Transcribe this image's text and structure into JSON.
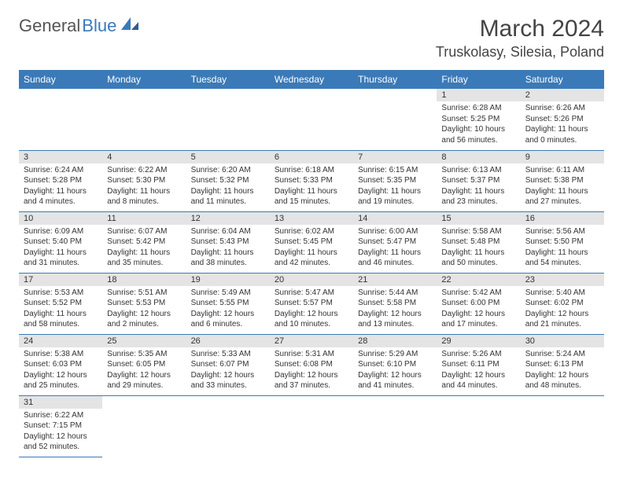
{
  "brand": {
    "word1": "General",
    "word2": "Blue"
  },
  "title": {
    "month": "March 2024",
    "location": "Truskolasy, Silesia, Poland"
  },
  "colors": {
    "header_bg": "#3b7ab8",
    "daynum_bg": "#e4e4e4",
    "border": "#3b7ab8"
  },
  "weekdays": [
    "Sunday",
    "Monday",
    "Tuesday",
    "Wednesday",
    "Thursday",
    "Friday",
    "Saturday"
  ],
  "weeks": [
    [
      null,
      null,
      null,
      null,
      null,
      {
        "n": "1",
        "sr": "Sunrise: 6:28 AM",
        "ss": "Sunset: 5:25 PM",
        "dl": "Daylight: 10 hours and 56 minutes."
      },
      {
        "n": "2",
        "sr": "Sunrise: 6:26 AM",
        "ss": "Sunset: 5:26 PM",
        "dl": "Daylight: 11 hours and 0 minutes."
      }
    ],
    [
      {
        "n": "3",
        "sr": "Sunrise: 6:24 AM",
        "ss": "Sunset: 5:28 PM",
        "dl": "Daylight: 11 hours and 4 minutes."
      },
      {
        "n": "4",
        "sr": "Sunrise: 6:22 AM",
        "ss": "Sunset: 5:30 PM",
        "dl": "Daylight: 11 hours and 8 minutes."
      },
      {
        "n": "5",
        "sr": "Sunrise: 6:20 AM",
        "ss": "Sunset: 5:32 PM",
        "dl": "Daylight: 11 hours and 11 minutes."
      },
      {
        "n": "6",
        "sr": "Sunrise: 6:18 AM",
        "ss": "Sunset: 5:33 PM",
        "dl": "Daylight: 11 hours and 15 minutes."
      },
      {
        "n": "7",
        "sr": "Sunrise: 6:15 AM",
        "ss": "Sunset: 5:35 PM",
        "dl": "Daylight: 11 hours and 19 minutes."
      },
      {
        "n": "8",
        "sr": "Sunrise: 6:13 AM",
        "ss": "Sunset: 5:37 PM",
        "dl": "Daylight: 11 hours and 23 minutes."
      },
      {
        "n": "9",
        "sr": "Sunrise: 6:11 AM",
        "ss": "Sunset: 5:38 PM",
        "dl": "Daylight: 11 hours and 27 minutes."
      }
    ],
    [
      {
        "n": "10",
        "sr": "Sunrise: 6:09 AM",
        "ss": "Sunset: 5:40 PM",
        "dl": "Daylight: 11 hours and 31 minutes."
      },
      {
        "n": "11",
        "sr": "Sunrise: 6:07 AM",
        "ss": "Sunset: 5:42 PM",
        "dl": "Daylight: 11 hours and 35 minutes."
      },
      {
        "n": "12",
        "sr": "Sunrise: 6:04 AM",
        "ss": "Sunset: 5:43 PM",
        "dl": "Daylight: 11 hours and 38 minutes."
      },
      {
        "n": "13",
        "sr": "Sunrise: 6:02 AM",
        "ss": "Sunset: 5:45 PM",
        "dl": "Daylight: 11 hours and 42 minutes."
      },
      {
        "n": "14",
        "sr": "Sunrise: 6:00 AM",
        "ss": "Sunset: 5:47 PM",
        "dl": "Daylight: 11 hours and 46 minutes."
      },
      {
        "n": "15",
        "sr": "Sunrise: 5:58 AM",
        "ss": "Sunset: 5:48 PM",
        "dl": "Daylight: 11 hours and 50 minutes."
      },
      {
        "n": "16",
        "sr": "Sunrise: 5:56 AM",
        "ss": "Sunset: 5:50 PM",
        "dl": "Daylight: 11 hours and 54 minutes."
      }
    ],
    [
      {
        "n": "17",
        "sr": "Sunrise: 5:53 AM",
        "ss": "Sunset: 5:52 PM",
        "dl": "Daylight: 11 hours and 58 minutes."
      },
      {
        "n": "18",
        "sr": "Sunrise: 5:51 AM",
        "ss": "Sunset: 5:53 PM",
        "dl": "Daylight: 12 hours and 2 minutes."
      },
      {
        "n": "19",
        "sr": "Sunrise: 5:49 AM",
        "ss": "Sunset: 5:55 PM",
        "dl": "Daylight: 12 hours and 6 minutes."
      },
      {
        "n": "20",
        "sr": "Sunrise: 5:47 AM",
        "ss": "Sunset: 5:57 PM",
        "dl": "Daylight: 12 hours and 10 minutes."
      },
      {
        "n": "21",
        "sr": "Sunrise: 5:44 AM",
        "ss": "Sunset: 5:58 PM",
        "dl": "Daylight: 12 hours and 13 minutes."
      },
      {
        "n": "22",
        "sr": "Sunrise: 5:42 AM",
        "ss": "Sunset: 6:00 PM",
        "dl": "Daylight: 12 hours and 17 minutes."
      },
      {
        "n": "23",
        "sr": "Sunrise: 5:40 AM",
        "ss": "Sunset: 6:02 PM",
        "dl": "Daylight: 12 hours and 21 minutes."
      }
    ],
    [
      {
        "n": "24",
        "sr": "Sunrise: 5:38 AM",
        "ss": "Sunset: 6:03 PM",
        "dl": "Daylight: 12 hours and 25 minutes."
      },
      {
        "n": "25",
        "sr": "Sunrise: 5:35 AM",
        "ss": "Sunset: 6:05 PM",
        "dl": "Daylight: 12 hours and 29 minutes."
      },
      {
        "n": "26",
        "sr": "Sunrise: 5:33 AM",
        "ss": "Sunset: 6:07 PM",
        "dl": "Daylight: 12 hours and 33 minutes."
      },
      {
        "n": "27",
        "sr": "Sunrise: 5:31 AM",
        "ss": "Sunset: 6:08 PM",
        "dl": "Daylight: 12 hours and 37 minutes."
      },
      {
        "n": "28",
        "sr": "Sunrise: 5:29 AM",
        "ss": "Sunset: 6:10 PM",
        "dl": "Daylight: 12 hours and 41 minutes."
      },
      {
        "n": "29",
        "sr": "Sunrise: 5:26 AM",
        "ss": "Sunset: 6:11 PM",
        "dl": "Daylight: 12 hours and 44 minutes."
      },
      {
        "n": "30",
        "sr": "Sunrise: 5:24 AM",
        "ss": "Sunset: 6:13 PM",
        "dl": "Daylight: 12 hours and 48 minutes."
      }
    ],
    [
      {
        "n": "31",
        "sr": "Sunrise: 6:22 AM",
        "ss": "Sunset: 7:15 PM",
        "dl": "Daylight: 12 hours and 52 minutes."
      },
      null,
      null,
      null,
      null,
      null,
      null
    ]
  ]
}
